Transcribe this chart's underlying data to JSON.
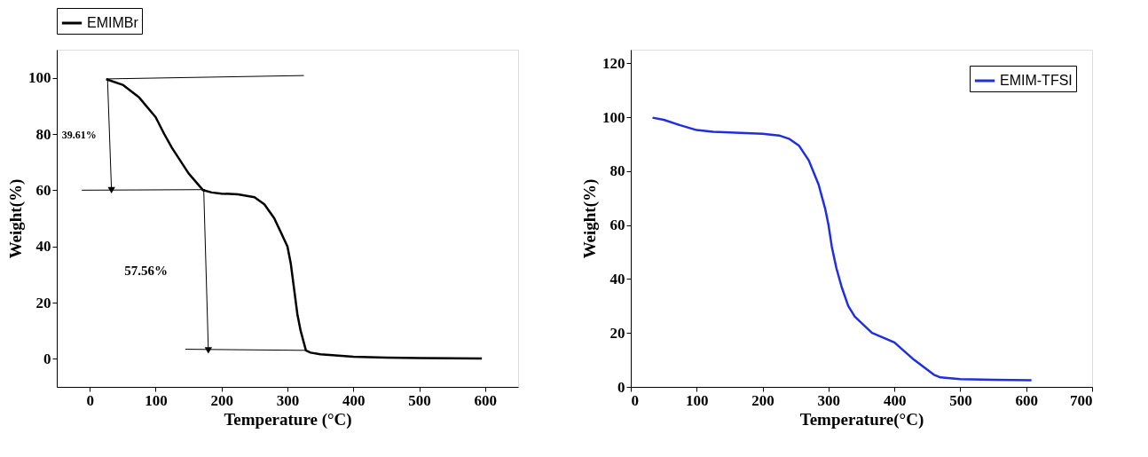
{
  "chart_data": [
    {
      "type": "line",
      "xlabel": "Temperature (°C)",
      "ylabel": "Weight(%)",
      "xlim": [
        -50,
        650
      ],
      "xticks": [
        0,
        100,
        200,
        300,
        400,
        500,
        600
      ],
      "ylim": [
        -10,
        110
      ],
      "yticks": [
        0,
        20,
        40,
        60,
        80,
        100
      ],
      "grid": false,
      "legend": "top",
      "annotations": [
        "39.61%",
        "57.56%"
      ],
      "series": [
        {
          "name": "EMIMBr",
          "color": "#000000",
          "x": [
            25,
            50,
            75,
            100,
            113,
            125,
            150,
            172,
            185,
            200,
            225,
            250,
            265,
            280,
            290,
            300,
            305,
            310,
            315,
            320,
            328,
            335,
            350,
            400,
            450,
            500,
            595
          ],
          "values": [
            99.5,
            97.5,
            93,
            86,
            80,
            75,
            66,
            60,
            59.2,
            58.8,
            58.5,
            57.5,
            55,
            50,
            45,
            40,
            34,
            25,
            16,
            10,
            3,
            2.2,
            1.6,
            0.7,
            0.4,
            0.3,
            0.1
          ]
        },
        {
          "color": "#000000",
          "x": [
            25,
            325
          ],
          "values": [
            99.6,
            100.8
          ]
        },
        {
          "color": "#000000",
          "x": [
            27,
            33
          ],
          "values": [
            99.6,
            60
          ],
          "marker": "triangle"
        },
        {
          "color": "#000000",
          "x": [
            -12,
            175
          ],
          "values": [
            60,
            60.2
          ]
        },
        {
          "color": "#000000",
          "x": [
            173,
            180
          ],
          "values": [
            60,
            3
          ],
          "marker": "triangle"
        },
        {
          "color": "#000000",
          "x": [
            145,
            328
          ],
          "values": [
            3.4,
            3
          ]
        }
      ]
    },
    {
      "type": "line",
      "xlabel": "Temperature(°C)",
      "ylabel": "Weight(%)",
      "xlim": [
        0,
        700
      ],
      "xticks": [
        0,
        100,
        200,
        300,
        400,
        500,
        600,
        700
      ],
      "ylim": [
        0,
        125
      ],
      "yticks": [
        0,
        20,
        40,
        60,
        80,
        100,
        120
      ],
      "grid": false,
      "legend": "top right",
      "series": [
        {
          "name": "EMIM-TFSI",
          "color": "#1f2fe0",
          "x": [
            33,
            50,
            75,
            100,
            125,
            150,
            200,
            225,
            240,
            255,
            270,
            285,
            295,
            300,
            305,
            312,
            320,
            330,
            340,
            366,
            400,
            430,
            460,
            470,
            500,
            550,
            608
          ],
          "values": [
            99.8,
            99,
            97,
            95.2,
            94.6,
            94.3,
            93.8,
            93.2,
            92,
            89.5,
            84,
            75,
            66,
            60,
            52,
            44,
            37,
            30,
            26,
            20,
            16.5,
            10,
            4.5,
            3.5,
            2.9,
            2.6,
            2.5
          ]
        }
      ]
    }
  ]
}
